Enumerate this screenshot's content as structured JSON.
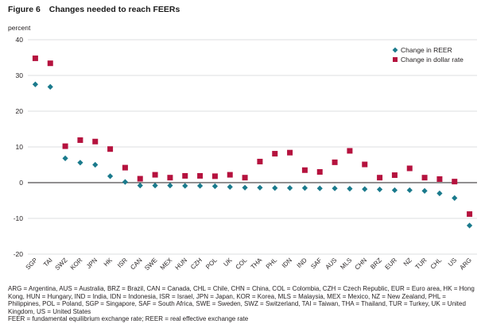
{
  "figure": {
    "label": "Figure 6",
    "title": "Changes needed to reach FEERs"
  },
  "chart_data": {
    "type": "scatter",
    "ylabel": "percent",
    "ylim": [
      -20,
      40
    ],
    "yticks": [
      -20,
      -10,
      0,
      10,
      20,
      30,
      40
    ],
    "legend_position": "top-right",
    "categories": [
      "SGP",
      "TAI",
      "SWZ",
      "KOR",
      "JPN",
      "HK",
      "ISR",
      "CAN",
      "SWE",
      "MEX",
      "HUN",
      "CZH",
      "POL",
      "UK",
      "COL",
      "THA",
      "PHL",
      "IDN",
      "IND",
      "SAF",
      "AUS",
      "MLS",
      "CHN",
      "BRZ",
      "EUR",
      "NZ",
      "TUR",
      "CHL",
      "US",
      "ARG"
    ],
    "series": [
      {
        "name": "Change in REER",
        "marker": "diamond",
        "color": "#1a7a8c",
        "values": [
          27.5,
          26.8,
          6.8,
          5.6,
          5.0,
          1.8,
          0.2,
          -0.8,
          -0.8,
          -0.8,
          -0.9,
          -0.9,
          -1.0,
          -1.2,
          -1.4,
          -1.4,
          -1.5,
          -1.5,
          -1.5,
          -1.6,
          -1.6,
          -1.7,
          -1.8,
          -1.9,
          -2.1,
          -2.1,
          -2.3,
          -3.0,
          -4.3,
          -12.0
        ]
      },
      {
        "name": "Change in dollar rate",
        "marker": "square",
        "color": "#b5123e",
        "values": [
          34.8,
          33.4,
          10.2,
          11.9,
          11.5,
          9.4,
          4.2,
          1.1,
          2.2,
          1.4,
          1.9,
          1.9,
          1.8,
          2.2,
          1.4,
          5.9,
          8.1,
          8.4,
          3.5,
          3.0,
          5.7,
          8.9,
          5.1,
          1.4,
          2.1,
          4.0,
          1.4,
          1.0,
          0.3,
          -8.8
        ]
      }
    ]
  },
  "notes": {
    "abbreviations": "ARG = Argentina, AUS = Australia, BRZ = Brazil, CAN = Canada, CHL = Chile, CHN = China, COL = Colombia, CZH = Czech Republic, EUR = Euro area, HK = Hong Kong, HUN = Hungary, IND = India, IDN = Indonesia,  ISR = Israel, JPN = Japan, KOR = Korea, MLS = Malaysia, MEX = Mexico, NZ = New Zealand, PHL = Philippines, POL = Poland, SGP = Singapore, SAF = South Africa, SWE = Sweden, SWZ = Switzerland, TAI = Taiwan, THA = Thailand, TUR = Turkey, UK = United Kingdom, US = United States",
    "definitions": "FEER = fundamental equilibrium exchange rate; REER = real effective exchange rate"
  }
}
